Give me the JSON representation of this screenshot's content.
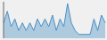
{
  "chart_data": {
    "type": "area",
    "values": [
      4,
      7,
      3,
      5,
      2,
      4,
      2,
      4,
      2,
      5,
      3,
      5,
      3,
      6,
      2,
      5,
      3,
      9,
      4,
      2,
      1,
      1,
      1,
      1,
      5,
      2,
      6,
      4
    ],
    "color": "#4a90c4",
    "ylim": [
      0,
      9.45
    ],
    "tick_labels": false,
    "grid": false
  }
}
